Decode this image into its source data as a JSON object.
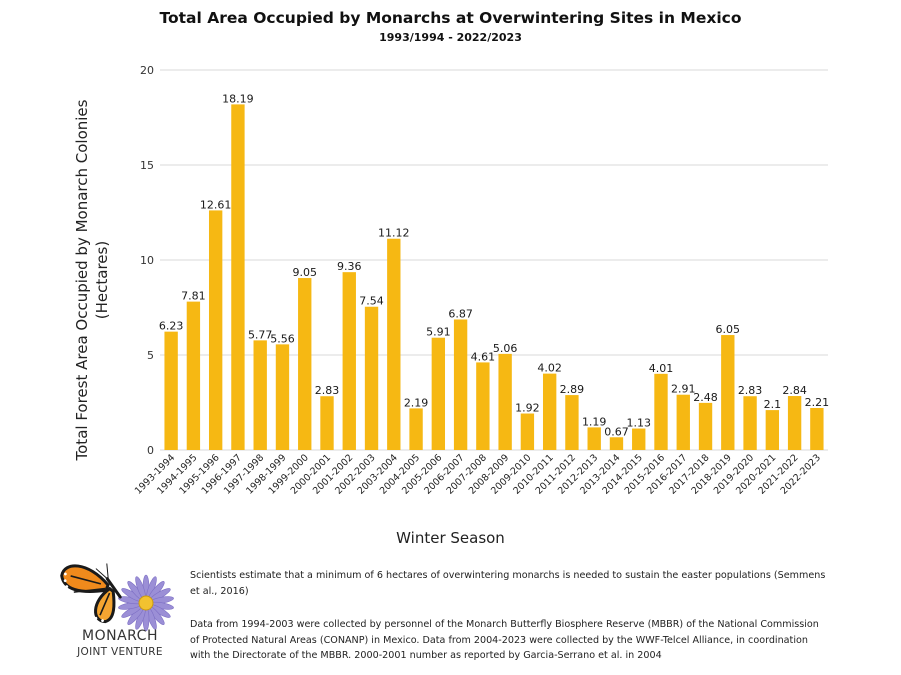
{
  "chart_data": {
    "type": "bar",
    "title": "Total Area Occupied by Monarchs at Overwintering Sites in Mexico",
    "subtitle": "1993/1994 - 2022/2023",
    "xlabel": "Winter Season",
    "ylabel": "Total Forest Area Occupied by Monarch Colonies (Hectares)",
    "ylim": [
      0,
      20
    ],
    "yticks": [
      0,
      5,
      10,
      15,
      20
    ],
    "grid": true,
    "bar_color": "#f6b813",
    "categories": [
      "1993-1994",
      "1994-1995",
      "1995-1996",
      "1996-1997",
      "1997-1998",
      "1998-1999",
      "1999-2000",
      "2000-2001",
      "2001-2002",
      "2002-2003",
      "2003-2004",
      "2004-2005",
      "2005-2006",
      "2006-2007",
      "2007-2008",
      "2008-2009",
      "2009-2010",
      "2010-2011",
      "2011-2012",
      "2012-2013",
      "2013-2014",
      "2014-2015",
      "2015-2016",
      "2016-2017",
      "2017-2018",
      "2018-2019",
      "2019-2020",
      "2020-2021",
      "2021-2022",
      "2022-2023"
    ],
    "values": [
      6.23,
      7.81,
      12.61,
      18.19,
      5.77,
      5.56,
      9.05,
      2.83,
      9.36,
      7.54,
      11.12,
      2.19,
      5.91,
      6.87,
      4.61,
      5.06,
      1.92,
      4.02,
      2.89,
      1.19,
      0.67,
      1.13,
      4.01,
      2.91,
      2.48,
      6.05,
      2.83,
      2.1,
      2.84,
      2.21
    ],
    "value_labels": [
      "6.23",
      "7.81",
      "12.61",
      "18.19",
      "5.77",
      "5.56",
      "9.05",
      "2.83",
      "9.36",
      "7.54",
      "11.12",
      "2.19",
      "5.91",
      "6.87",
      "4.61",
      "5.06",
      "1.92",
      "4.02",
      "2.89",
      "1.19",
      "0.67",
      "1.13",
      "4.01",
      "2.91",
      "2.48",
      "6.05",
      "2.83",
      "2.1",
      "2.84",
      "2.21"
    ]
  },
  "logo": {
    "name": "MONARCH",
    "subname": "JOINT VENTURE",
    "icon": "monarch-butterfly-on-aster-flower"
  },
  "notes": {
    "note1": "Scientists estimate that a minimum of 6 hectares of overwintering monarchs is needed to sustain the easter populations (Semmens et al., 2016)",
    "note2": "Data from  1994-2003 were collected by personnel of the Monarch Butterfly Biosphere Reserve (MBBR) of the National Commission of Protected Natural Areas (CONANP) in Mexico. Data from 2004-2023 were collected by the WWF-Telcel Alliance, in coordination with the Directorate of the MBBR. 2000-2001 number as reported by Garcia-Serrano et al. in 2004"
  }
}
